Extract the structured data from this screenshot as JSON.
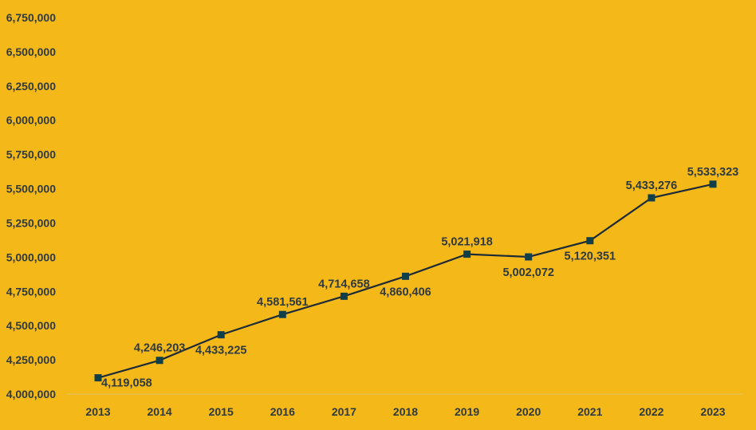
{
  "chart_data": {
    "type": "line",
    "title": "",
    "xlabel": "",
    "ylabel": "",
    "categories": [
      "2013",
      "2014",
      "2015",
      "2016",
      "2017",
      "2018",
      "2019",
      "2020",
      "2021",
      "2022",
      "2023"
    ],
    "series": [
      {
        "values": [
          4119058,
          4246203,
          4433225,
          4581561,
          4714658,
          4860406,
          5021918,
          5002072,
          5120351,
          5433276,
          5533323
        ],
        "data_labels": [
          "4,119,058",
          "4,246,203",
          "4,433,225",
          "4,581,561",
          "4,714,658",
          "4,860,406",
          "5,021,918",
          "5,002,072",
          "5,120,351",
          "5,433,276",
          "5,533,323"
        ],
        "label_positions": [
          "below-right",
          "above",
          "below",
          "above",
          "above",
          "below",
          "above",
          "below",
          "below",
          "above",
          "above"
        ],
        "marker": "square"
      }
    ],
    "ylim": [
      4000000,
      6750000
    ],
    "y_ticks": [
      4000000,
      4250000,
      4500000,
      4750000,
      5000000,
      5250000,
      5500000,
      5750000,
      6000000,
      6250000,
      6500000,
      6750000
    ],
    "y_tick_labels": [
      "4,000,000",
      "4,250,000",
      "4,500,000",
      "4,750,000",
      "5,000,000",
      "5,250,000",
      "5,500,000",
      "5,750,000",
      "6,000,000",
      "6,250,000",
      "6,500,000",
      "6,750,000"
    ],
    "grid": false,
    "legend": "none",
    "colors": {
      "background": "#F5B819",
      "line": "#1D2B36",
      "marker": "#103F4A",
      "text": "#2F3A3E",
      "axis": "#E0C06A"
    }
  }
}
